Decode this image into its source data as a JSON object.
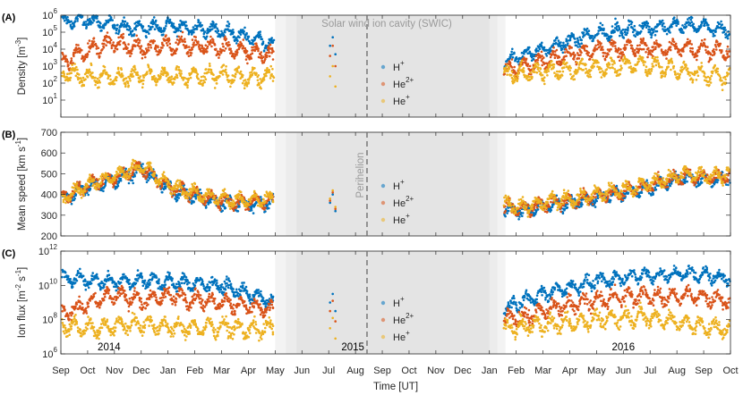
{
  "chart_data": {
    "type": "scatter",
    "xlabel": "Time [UT]",
    "month_ticks": [
      "Sep",
      "Oct",
      "Nov",
      "Dec",
      "Jan",
      "Feb",
      "Mar",
      "Apr",
      "May",
      "Jun",
      "Jul",
      "Aug",
      "Sep",
      "Oct",
      "Nov",
      "Dec",
      "Jan",
      "Feb",
      "Mar",
      "Apr",
      "May",
      "Jun",
      "Jul",
      "Aug",
      "Sep",
      "Oct"
    ],
    "year_labels": [
      {
        "text": "2014",
        "month_index": 1.8
      },
      {
        "text": "2015",
        "month_index": 10.9
      },
      {
        "text": "2016",
        "month_index": 21.0
      }
    ],
    "annotations": {
      "swic_label": "Solar wind ion cavity (SWIC)",
      "perihelion_label": "Perihelion",
      "perihelion_month_index": 11.43,
      "swic_shading": [
        {
          "from": 8.0,
          "to": 16.6,
          "shade": "#f3f3f3"
        },
        {
          "from": 8.4,
          "to": 16.3,
          "shade": "#ececec"
        },
        {
          "from": 8.8,
          "to": 16.0,
          "shade": "#e4e4e4"
        }
      ]
    },
    "series_colors": {
      "H+": "#0072BD",
      "He2+": "#D95319",
      "He+": "#EDB120"
    },
    "panels": [
      {
        "label": "(A)",
        "ylabel_main": "Density [m",
        "ylabel_sup": "-3",
        "ylabel_end": "]",
        "scale": "log",
        "ylim": [
          1,
          1000000
        ],
        "yticks": [
          {
            "v": 1,
            "base": "10",
            "exp": "1"
          },
          {
            "v": 2,
            "base": "10",
            "exp": "2"
          },
          {
            "v": 3,
            "base": "10",
            "exp": "3"
          },
          {
            "v": 4,
            "base": "10",
            "exp": "4"
          },
          {
            "v": 5,
            "base": "10",
            "exp": "5"
          },
          {
            "v": 6,
            "base": "10",
            "exp": "6"
          }
        ],
        "series": [
          {
            "name": "H+",
            "base_pre": [
              5.6,
              5.7,
              5.4,
              5.2,
              5.4,
              5.2,
              5.1,
              4.7,
              4.2
            ],
            "base_post": [
              3.2,
              3.7,
              4.1,
              4.5,
              4.9,
              5.1,
              5.2,
              5.3,
              5.4,
              5.3,
              5.1
            ],
            "jitter": 0.5
          },
          {
            "name": "He2+",
            "base_pre": [
              3.2,
              4.0,
              4.4,
              4.0,
              4.3,
              4.2,
              4.1,
              3.8,
              3.6
            ],
            "base_post": [
              2.8,
              3.0,
              3.4,
              3.7,
              3.9,
              4.0,
              4.1,
              4.0,
              4.1,
              4.0,
              3.8
            ],
            "jitter": 0.6
          },
          {
            "name": "He+",
            "base_pre": [
              2.6,
              2.4,
              2.3,
              2.5,
              2.4,
              2.4,
              2.5,
              2.3,
              2.4
            ],
            "base_post": [
              2.5,
              2.6,
              2.7,
              2.8,
              2.9,
              3.0,
              3.1,
              2.9,
              2.7,
              2.5,
              2.3
            ],
            "jitter": 0.6
          }
        ]
      },
      {
        "label": "(B)",
        "ylabel_main": "Mean speed [km s",
        "ylabel_sup": "-1",
        "ylabel_end": "]",
        "scale": "linear",
        "ylim": [
          200,
          700
        ],
        "yticks": [
          {
            "v": 200,
            "base": "200",
            "exp": ""
          },
          {
            "v": 300,
            "base": "300",
            "exp": ""
          },
          {
            "v": 400,
            "base": "400",
            "exp": ""
          },
          {
            "v": 500,
            "base": "500",
            "exp": ""
          },
          {
            "v": 600,
            "base": "600",
            "exp": ""
          },
          {
            "v": 700,
            "base": "700",
            "exp": ""
          }
        ],
        "series": [
          {
            "name": "H+",
            "base_pre": [
              375,
              440,
              470,
              520,
              430,
              390,
              360,
              350,
              360
            ],
            "base_post": [
              330,
              320,
              350,
              360,
              380,
              400,
              420,
              450,
              480,
              470,
              480
            ],
            "jitter": 40
          },
          {
            "name": "He2+",
            "base_pre": [
              380,
              450,
              480,
              530,
              440,
              400,
              370,
              360,
              370
            ],
            "base_post": [
              340,
              330,
              360,
              370,
              390,
              410,
              430,
              460,
              490,
              480,
              490
            ],
            "jitter": 40
          },
          {
            "name": "He+",
            "base_pre": [
              380,
              450,
              490,
              540,
              450,
              410,
              380,
              370,
              380
            ],
            "base_post": [
              350,
              340,
              370,
              380,
              400,
              420,
              440,
              470,
              500,
              490,
              500
            ],
            "jitter": 40
          }
        ]
      },
      {
        "label": "(C)",
        "ylabel_main": "Ion flux [m",
        "ylabel_sup": "-2",
        "ylabel_mid": " s",
        "ylabel_sup2": "-1",
        "ylabel_end": "]",
        "scale": "log",
        "ylim": [
          1000000,
          1000000000000
        ],
        "yticks": [
          {
            "v": 6,
            "base": "10",
            "exp": "6"
          },
          {
            "v": 8,
            "base": "10",
            "exp": "8"
          },
          {
            "v": 10,
            "base": "10",
            "exp": "10"
          },
          {
            "v": 12,
            "base": "10",
            "exp": "12"
          }
        ],
        "series": [
          {
            "name": "H+",
            "base_pre": [
              10.4,
              10.3,
              10.2,
              10.3,
              10.2,
              10.1,
              10.0,
              9.5,
              9.0
            ],
            "base_post": [
              8.6,
              9.2,
              9.6,
              9.9,
              10.2,
              10.4,
              10.6,
              10.6,
              10.7,
              10.6,
              10.4
            ],
            "jitter": 0.5
          },
          {
            "name": "He2+",
            "base_pre": [
              8.3,
              9.0,
              9.5,
              9.1,
              9.4,
              9.2,
              9.0,
              8.8,
              8.5
            ],
            "base_post": [
              8.0,
              8.2,
              8.6,
              8.9,
              9.1,
              9.3,
              9.4,
              9.3,
              9.4,
              9.3,
              9.1
            ],
            "jitter": 0.6
          },
          {
            "name": "He+",
            "base_pre": [
              7.6,
              7.5,
              7.6,
              7.8,
              7.6,
              7.5,
              7.6,
              7.4,
              7.5
            ],
            "base_post": [
              7.5,
              7.6,
              7.7,
              7.8,
              8.0,
              8.1,
              8.2,
              8.0,
              7.8,
              7.6,
              7.4
            ],
            "jitter": 0.6
          }
        ]
      }
    ],
    "legend": [
      {
        "base": "H",
        "sup": "+"
      },
      {
        "base": "He",
        "sup": "2+"
      },
      {
        "base": "He",
        "sup": "+"
      }
    ]
  }
}
